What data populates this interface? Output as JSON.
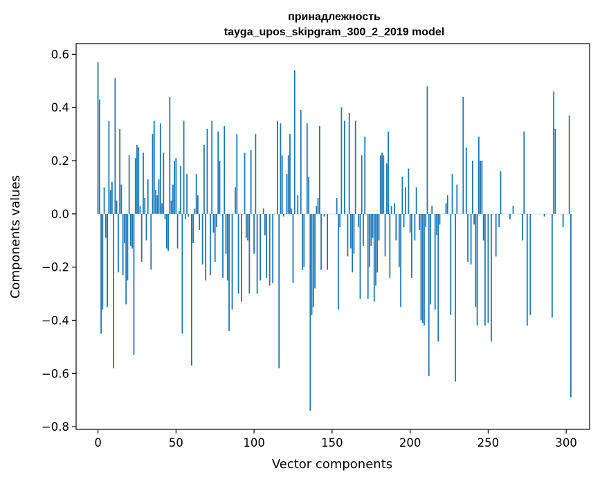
{
  "chart_data": {
    "type": "bar",
    "title": "принадлежность",
    "subtitle": "tayga_upos_skipgram_300_2_2019 model",
    "xlabel": "Vector components",
    "ylabel": "Components values",
    "xlim": [
      -14,
      315
    ],
    "ylim": [
      -0.81,
      0.64
    ],
    "xticks": [
      0,
      50,
      100,
      150,
      200,
      250,
      300
    ],
    "xtick_labels": [
      "0",
      "50",
      "100",
      "150",
      "200",
      "250",
      "300"
    ],
    "yticks": [
      -0.8,
      -0.6,
      -0.4,
      -0.2,
      0.0,
      0.2,
      0.4,
      0.6
    ],
    "ytick_labels": [
      "−0.8",
      "−0.6",
      "−0.4",
      "−0.2",
      "0.0",
      "0.2",
      "0.4",
      "0.6"
    ],
    "grid": false,
    "bar_color": "#1f77b4",
    "x_start": 0,
    "values": [
      0.57,
      0.43,
      -0.45,
      -0.36,
      0.1,
      -0.09,
      -0.35,
      0.35,
      0.09,
      0.12,
      -0.58,
      0.51,
      0.05,
      -0.22,
      0.32,
      0.11,
      -0.23,
      -0.11,
      -0.34,
      -0.25,
      0.22,
      -0.12,
      -0.13,
      -0.53,
      0.21,
      0.26,
      0.25,
      0.03,
      -0.18,
      0.23,
      0.06,
      -0.1,
      0.13,
      0.0,
      -0.21,
      0.3,
      0.35,
      0.09,
      0.07,
      0.13,
      0.34,
      0.04,
      0.23,
      -0.02,
      -0.13,
      -0.14,
      0.44,
      0.05,
      0.11,
      0.2,
      0.21,
      -0.13,
      0.01,
      0.18,
      -0.45,
      0.35,
      -0.02,
      0.15,
      -0.01,
      0.0,
      -0.57,
      -0.11,
      0.02,
      0.15,
      0.07,
      -0.06,
      0.0,
      -0.19,
      0.26,
      -0.25,
      0.32,
      0.0,
      -0.23,
      0.35,
      -0.07,
      -0.18,
      -0.05,
      0.31,
      0.2,
      0.0,
      -0.24,
      0.33,
      -0.15,
      -0.25,
      -0.44,
      0.0,
      -0.36,
      0.0,
      0.1,
      0.3,
      -0.3,
      0.0,
      -0.33,
      0.0,
      0.23,
      -0.09,
      -0.1,
      -0.3,
      0.24,
      0.0,
      -0.15,
      0.3,
      -0.3,
      0.0,
      -0.25,
      0.0,
      0.02,
      -0.08,
      -0.24,
      0.0,
      -0.27,
      0.0,
      -0.26,
      0.0,
      0.0,
      0.35,
      -0.58,
      0.34,
      0.22,
      -0.01,
      0.0,
      0.15,
      0.22,
      0.3,
      0.02,
      -0.26,
      0.54,
      0.0,
      0.07,
      0.0,
      0.39,
      -0.21,
      -0.2,
      0.0,
      0.34,
      0.14,
      -0.74,
      -0.38,
      -0.35,
      -0.28,
      0.03,
      0.06,
      0.33,
      -0.21,
      0.0,
      -0.01,
      0.0,
      -0.21,
      0.0,
      0.0,
      0.0,
      0.0,
      0.0,
      0.06,
      -0.36,
      -0.05,
      0.4,
      0.0,
      0.35,
      0.0,
      -0.16,
      0.38,
      -0.13,
      -0.22,
      -0.15,
      0.35,
      0.0,
      -0.05,
      -0.32,
      0.22,
      -0.12,
      0.29,
      0.0,
      -0.32,
      -0.2,
      -0.12,
      -0.09,
      -0.33,
      -0.27,
      -0.22,
      -0.1,
      0.22,
      0.23,
      0.22,
      -0.16,
      0.19,
      0.31,
      -0.24,
      0.03,
      0.0,
      0.04,
      -0.1,
      0.0,
      -0.2,
      -0.35,
      0.14,
      -0.05,
      0.1,
      0.0,
      0.17,
      -0.07,
      -0.24,
      0.0,
      -0.1,
      0.1,
      0.0,
      -0.06,
      -0.4,
      -0.41,
      -0.42,
      -0.05,
      0.48,
      -0.61,
      -0.34,
      0.03,
      0.0,
      -0.36,
      -0.08,
      -0.48,
      -0.04,
      0.0,
      0.0,
      0.0,
      0.04,
      0.07,
      0.0,
      -0.38,
      0.15,
      0.0,
      -0.63,
      0.11,
      0.0,
      0.0,
      0.0,
      0.44,
      0.0,
      0.25,
      -0.18,
      0.0,
      -0.19,
      0.2,
      -0.04,
      -0.35,
      -0.42,
      0.29,
      0.2,
      0.2,
      -0.1,
      -0.42,
      0.0,
      -0.41,
      0.0,
      -0.48,
      0.0,
      0.0,
      -0.16,
      0.0,
      -0.05,
      0.16,
      0.0,
      0.0,
      0.0,
      0.0,
      0.0,
      -0.02,
      0.0,
      0.03,
      0.0,
      0.0,
      0.0,
      0.0,
      0.0,
      -0.1,
      0.31,
      0.0,
      -0.42,
      0.0,
      -0.38,
      0.0,
      0.0,
      0.0,
      0.0,
      0.0,
      0.0,
      0.0,
      0.0,
      -0.01,
      0.0,
      0.0,
      0.0,
      0.0,
      -0.39,
      0.46,
      0.32,
      0.0,
      0.0,
      0.0,
      0.0,
      -0.05,
      0.0,
      0.0,
      0.0,
      0.37,
      -0.69
    ]
  }
}
